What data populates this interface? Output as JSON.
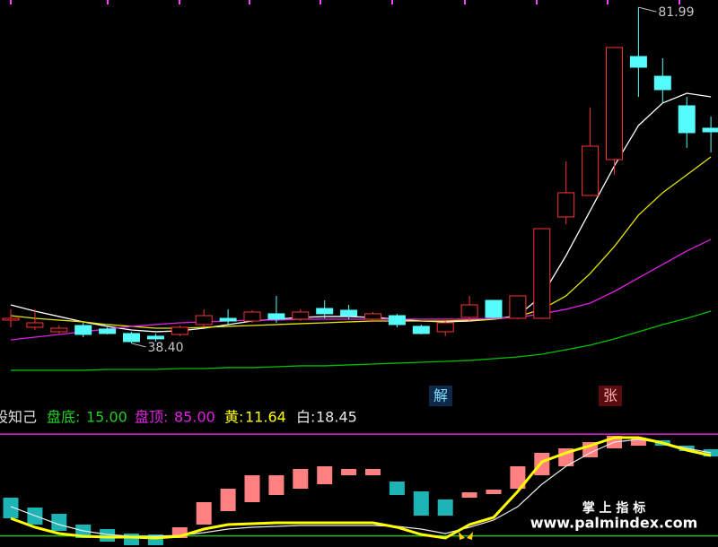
{
  "chart_data": [
    {
      "type": "candlestick",
      "ylim": [
        30.59,
        82.93
      ],
      "open": [
        41.41,
        40.48,
        39.9,
        40.71,
        40.25,
        39.67,
        39.32,
        39.55,
        40.83,
        41.64,
        41.29,
        42.23,
        41.53,
        42.92,
        42.69,
        41.53,
        41.99,
        40.6,
        39.9,
        41.76,
        43.97,
        41.64,
        41.64,
        54.79,
        57.58,
        62.23,
        75.6,
        73.04,
        69.21,
        66.3
      ],
      "high": [
        42.81,
        42.81,
        40.71,
        41.06,
        40.48,
        39.9,
        39.67,
        40.71,
        42.81,
        42.81,
        42.69,
        44.55,
        42.81,
        43.97,
        43.39,
        42.46,
        42.23,
        40.83,
        41.29,
        44.55,
        43.97,
        44.55,
        53.27,
        62.0,
        68.97,
        76.77,
        81.99,
        75.37,
        70.37,
        67.81
      ],
      "low": [
        40.48,
        40.13,
        39.67,
        39.2,
        39.55,
        38.4,
        38.62,
        39.32,
        40.6,
        40.83,
        41.06,
        41.06,
        41.29,
        41.64,
        41.53,
        41.29,
        40.48,
        39.55,
        39.32,
        41.29,
        41.64,
        41.53,
        41.53,
        53.86,
        57.58,
        60.25,
        70.37,
        69.56,
        63.74,
        63.16
      ],
      "close": [
        41.64,
        41.06,
        40.36,
        39.55,
        39.67,
        38.62,
        38.97,
        40.48,
        41.99,
        41.29,
        42.46,
        41.53,
        42.46,
        42.23,
        41.99,
        42.23,
        40.83,
        39.67,
        41.06,
        43.39,
        41.76,
        44.55,
        53.27,
        57.93,
        63.97,
        76.77,
        74.21,
        71.3,
        65.72,
        65.83
      ],
      "up_color": "#ff3232",
      "down_color": "#54fcfc",
      "lines": [
        {
          "color": "#ffffff",
          "values": [
            43.39,
            42.57,
            41.88,
            41.18,
            40.6,
            40.13,
            39.9,
            40.02,
            40.36,
            40.83,
            41.29,
            41.53,
            41.76,
            41.88,
            41.88,
            41.76,
            41.53,
            41.29,
            41.18,
            41.29,
            41.53,
            41.99,
            44.55,
            49.78,
            55.6,
            61.41,
            66.65,
            69.56,
            70.83,
            70.37
          ]
        },
        {
          "color": "#e6e600",
          "values": [
            41.99,
            41.64,
            41.41,
            41.18,
            40.83,
            40.6,
            40.36,
            40.36,
            40.48,
            40.6,
            40.71,
            40.83,
            40.95,
            41.06,
            41.18,
            41.29,
            41.29,
            41.29,
            41.29,
            41.41,
            41.53,
            41.88,
            42.81,
            44.55,
            47.46,
            50.95,
            55.02,
            57.93,
            60.25,
            62.58
          ]
        },
        {
          "color": "#e020e0",
          "values": [
            38.85,
            39.2,
            39.55,
            39.9,
            40.25,
            40.6,
            40.83,
            41.06,
            41.18,
            41.29,
            41.41,
            41.41,
            41.53,
            41.53,
            41.53,
            41.53,
            41.53,
            41.53,
            41.53,
            41.53,
            41.64,
            41.76,
            42.23,
            42.81,
            43.62,
            45.13,
            46.88,
            48.62,
            50.37,
            51.88
          ]
        },
        {
          "color": "#00c000",
          "values": [
            34.9,
            34.9,
            34.9,
            34.9,
            35.01,
            35.01,
            35.01,
            35.13,
            35.13,
            35.25,
            35.25,
            35.36,
            35.48,
            35.48,
            35.6,
            35.71,
            35.83,
            35.94,
            36.06,
            36.18,
            36.41,
            36.64,
            36.99,
            37.57,
            38.16,
            38.97,
            39.9,
            40.83,
            41.64,
            42.57
          ]
        }
      ],
      "high_marker": 81.99,
      "low_marker": {
        "value": 38.4,
        "label": "38.40"
      },
      "signals": [
        "解",
        "张"
      ]
    },
    {
      "type": "indicator",
      "title": "股知己",
      "ylim": [
        8,
        90
      ],
      "bars": {
        "start": [
          41.29,
          34.51,
          30.19,
          22.8,
          19.71,
          16.63,
          16.01,
          13.55,
          22.8,
          32.04,
          38.21,
          43.14,
          47.46,
          50.54,
          56.7,
          56.7,
          52.39,
          45.61,
          40.06,
          41.29,
          43.76,
          47.46,
          56.7,
          62.87,
          69.03,
          75.2,
          77.05,
          80.75,
          77.05,
          74.58
        ],
        "end": [
          27.11,
          22.8,
          18.48,
          13.55,
          11.08,
          8.62,
          8.62,
          20.95,
          38.21,
          47.46,
          56.7,
          56.7,
          61.02,
          62.87,
          61.02,
          61.02,
          43.14,
          28.96,
          28.96,
          44.99,
          46.84,
          62.87,
          72.12,
          75.2,
          79.51,
          83.83,
          82.6,
          77.05,
          73.35,
          69.65
        ],
        "up_color": "#ff8080",
        "down_color": "#1cb4b4"
      },
      "levels": [
        {
          "name": "盘底:",
          "value": 15,
          "value_label": "15.00",
          "color": "#20c020"
        },
        {
          "name": "盘顶:",
          "value": 85,
          "value_label": "85.00",
          "color": "#e020e0"
        }
      ],
      "series": [
        {
          "name": "黄:",
          "current": 11.64,
          "color": "#ffff00",
          "values": [
            27.11,
            20.95,
            16.63,
            14.78,
            14.17,
            14.17,
            13.55,
            14.78,
            19.71,
            22.8,
            23.41,
            24.03,
            24.03,
            24.03,
            24.03,
            24.03,
            20.95,
            16.01,
            13.55,
            22.8,
            27.73,
            45.61,
            65.95,
            72.12,
            77.05,
            82.6,
            82.6,
            78.9,
            73.97,
            70.27
          ]
        },
        {
          "name": "白:",
          "current": 18.45,
          "color": "#e8e8e8",
          "values": [
            35.13,
            28.96,
            22.8,
            18.48,
            16.01,
            14.78,
            14.78,
            15.4,
            17.25,
            19.71,
            20.95,
            21.56,
            22.18,
            22.18,
            22.18,
            22.18,
            21.56,
            19.71,
            16.63,
            20.95,
            25.88,
            35.13,
            50.54,
            62.87,
            72.12,
            79.51,
            81.36,
            78.9,
            75.2,
            72.12
          ]
        }
      ]
    }
  ],
  "watermark": {
    "title": "掌 上 指 标",
    "url": "www.palmindex.com"
  }
}
